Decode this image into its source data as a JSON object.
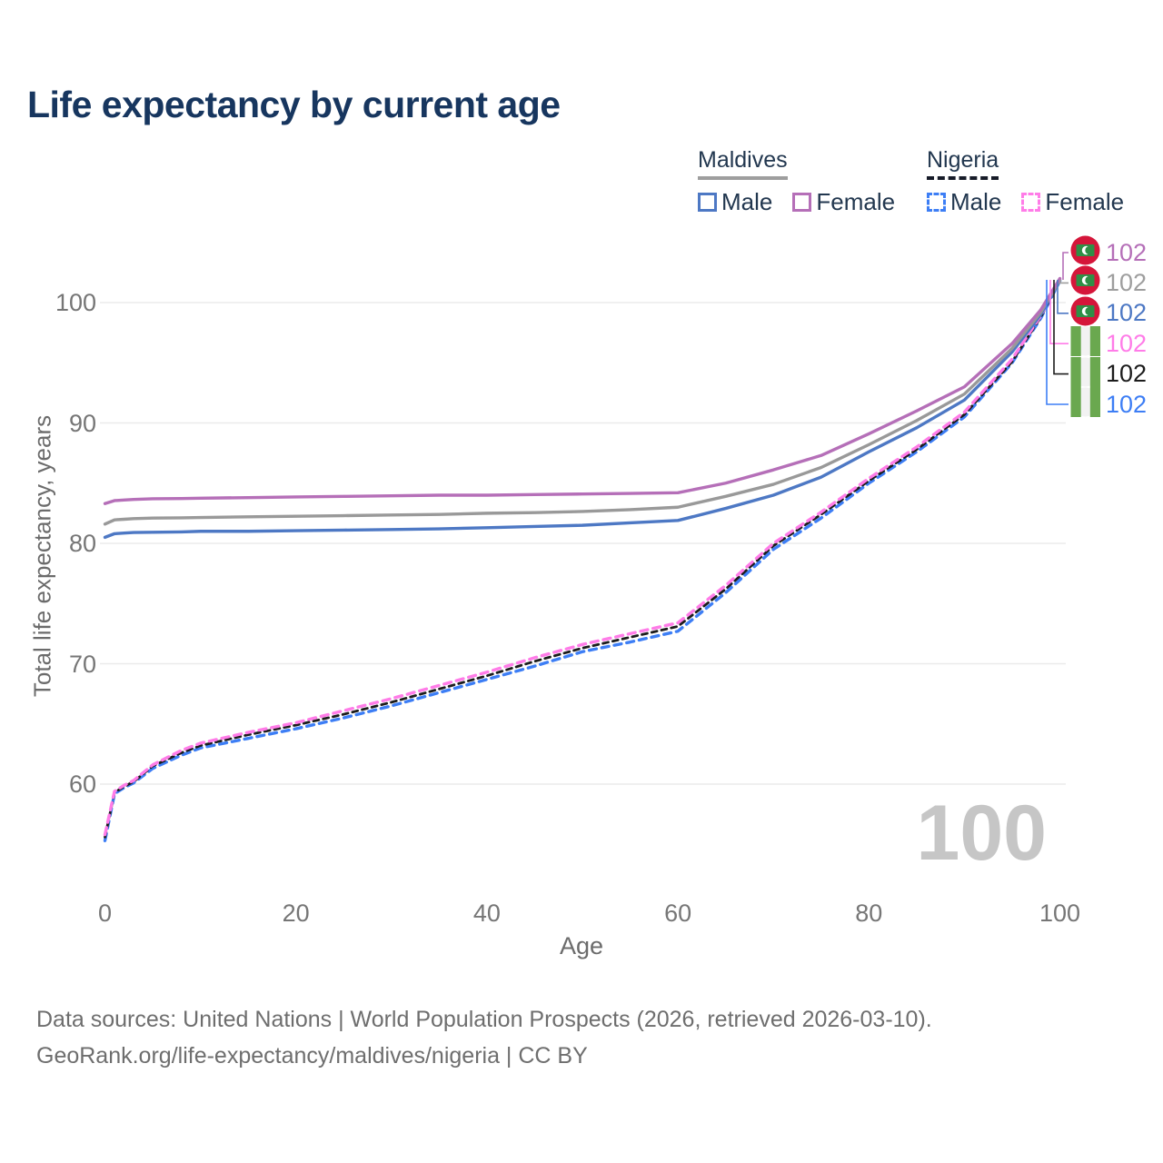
{
  "title": "Life expectancy by current age",
  "legend": {
    "groups": [
      {
        "name": "Maldives",
        "style": "solid",
        "items": [
          {
            "label": "Male",
            "color": "#4d78c4"
          },
          {
            "label": "Female",
            "color": "#b56fb8"
          }
        ]
      },
      {
        "name": "Nigeria",
        "style": "dashed",
        "items": [
          {
            "label": "Male",
            "color": "#3d7ef5"
          },
          {
            "label": "Female",
            "color": "#ff7ce8"
          }
        ]
      }
    ]
  },
  "axes": {
    "y_title": "Total life expectancy, years",
    "x_title": "Age",
    "y_ticks": [
      100,
      90,
      80,
      70,
      60
    ],
    "x_ticks": [
      0,
      20,
      40,
      60,
      80,
      100
    ]
  },
  "watermark": "100",
  "end_labels": [
    {
      "value": "102",
      "series": "maldives-female",
      "color": "#b56fb8",
      "flag": "maldives"
    },
    {
      "value": "102",
      "series": "maldives-total",
      "color": "#9e9e9e",
      "flag": "maldives"
    },
    {
      "value": "102",
      "series": "maldives-male",
      "color": "#4d78c4",
      "flag": "maldives"
    },
    {
      "value": "102",
      "series": "nigeria-female",
      "color": "#ff7ce8",
      "flag": "nigeria"
    },
    {
      "value": "102",
      "series": "nigeria-total",
      "color": "#1c1c1c",
      "flag": "nigeria"
    },
    {
      "value": "102",
      "series": "nigeria-male",
      "color": "#3d7ef5",
      "flag": "nigeria"
    }
  ],
  "footer": {
    "line1": "Data sources: United Nations | World Population Prospects (2026, retrieved 2026-03-10).",
    "line2": "GeoRank.org/life-expectancy/maldives/nigeria | CC BY"
  },
  "chart_data": {
    "type": "line",
    "title": "Life expectancy by current age",
    "xlabel": "Age",
    "ylabel": "Total life expectancy, years",
    "xlim": [
      0,
      100
    ],
    "ylim": [
      54,
      104
    ],
    "grid": "horizontal",
    "legend_position": "top-right",
    "x": [
      0,
      1,
      2,
      3,
      5,
      8,
      10,
      15,
      20,
      25,
      30,
      35,
      40,
      45,
      50,
      55,
      60,
      65,
      70,
      75,
      80,
      85,
      90,
      95,
      98,
      100
    ],
    "series": [
      {
        "name": "Nigeria Male",
        "id": "nigeria-male",
        "country": "Nigeria",
        "sex": "male",
        "color": "#3d7ef5",
        "dash": "8 6",
        "width": 3.4,
        "values": [
          55.3,
          59.2,
          59.7,
          60.1,
          61.3,
          62.4,
          63.0,
          63.8,
          64.6,
          65.5,
          66.5,
          67.6,
          68.7,
          69.8,
          71.0,
          71.8,
          72.7,
          75.9,
          79.5,
          82.1,
          85.0,
          87.6,
          90.5,
          95.0,
          98.7,
          101.8
        ]
      },
      {
        "name": "Nigeria Total",
        "id": "nigeria-total",
        "country": "Nigeria",
        "sex": "both",
        "color": "#1c1c1c",
        "dash": "6 5",
        "width": 2.8,
        "values": [
          55.6,
          59.3,
          59.8,
          60.2,
          61.5,
          62.6,
          63.2,
          64.1,
          64.9,
          65.8,
          66.8,
          67.9,
          69.0,
          70.2,
          71.3,
          72.2,
          73.1,
          76.2,
          79.8,
          82.4,
          85.2,
          87.8,
          90.7,
          95.1,
          98.8,
          101.85
        ]
      },
      {
        "name": "Nigeria Female",
        "id": "nigeria-female",
        "country": "Nigeria",
        "sex": "female",
        "color": "#ff7ce8",
        "dash": "8 6",
        "width": 3.4,
        "values": [
          55.8,
          59.4,
          59.9,
          60.3,
          61.6,
          62.8,
          63.4,
          64.3,
          65.1,
          66.1,
          67.1,
          68.2,
          69.3,
          70.5,
          71.6,
          72.5,
          73.4,
          76.5,
          80.0,
          82.6,
          85.4,
          88.0,
          90.9,
          95.3,
          98.9,
          101.9
        ]
      },
      {
        "name": "Maldives Male",
        "id": "maldives-male",
        "country": "Maldives",
        "sex": "male",
        "color": "#4d78c4",
        "dash": "",
        "width": 3.4,
        "values": [
          80.5,
          80.8,
          80.85,
          80.9,
          80.92,
          80.95,
          81.0,
          81.0,
          81.05,
          81.1,
          81.15,
          81.2,
          81.3,
          81.4,
          81.5,
          81.7,
          81.9,
          82.9,
          84.0,
          85.5,
          87.6,
          89.6,
          91.9,
          95.9,
          99.0,
          101.8
        ]
      },
      {
        "name": "Maldives Total",
        "id": "maldives-total",
        "country": "Maldives",
        "sex": "both",
        "color": "#999999",
        "dash": "",
        "width": 3.4,
        "values": [
          81.6,
          81.95,
          82.0,
          82.05,
          82.1,
          82.12,
          82.15,
          82.2,
          82.25,
          82.3,
          82.35,
          82.4,
          82.5,
          82.55,
          82.65,
          82.8,
          83.0,
          83.9,
          84.9,
          86.3,
          88.2,
          90.2,
          92.4,
          96.2,
          99.2,
          101.9
        ]
      },
      {
        "name": "Maldives Female",
        "id": "maldives-female",
        "country": "Maldives",
        "sex": "female",
        "color": "#b56fb8",
        "dash": "",
        "width": 3.4,
        "values": [
          83.3,
          83.55,
          83.6,
          83.65,
          83.7,
          83.72,
          83.75,
          83.8,
          83.85,
          83.9,
          83.95,
          84.0,
          84.0,
          84.05,
          84.1,
          84.15,
          84.2,
          85.0,
          86.1,
          87.3,
          89.1,
          91.0,
          93.0,
          96.6,
          99.4,
          102.0
        ]
      }
    ]
  }
}
